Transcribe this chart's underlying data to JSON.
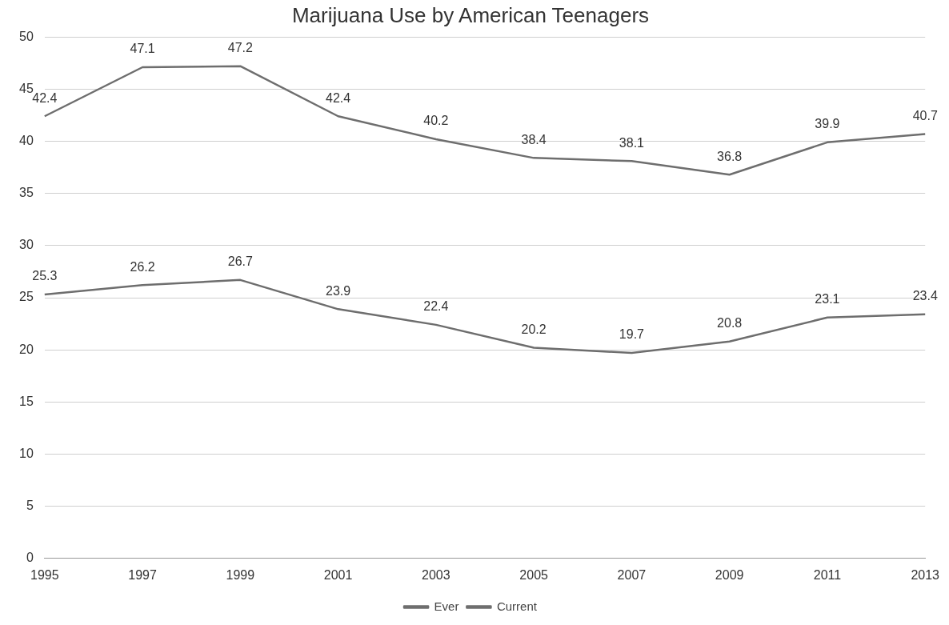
{
  "chart_data": {
    "type": "line",
    "title": "Marijuana Use by American Teenagers",
    "categories": [
      "1995",
      "1997",
      "1999",
      "2001",
      "2003",
      "2005",
      "2007",
      "2009",
      "2011",
      "2013"
    ],
    "series": [
      {
        "name": "Ever",
        "color": "#6e6e6e",
        "values": [
          42.4,
          47.1,
          47.2,
          42.4,
          40.2,
          38.4,
          38.1,
          36.8,
          39.9,
          40.7
        ]
      },
      {
        "name": "Current",
        "color": "#6e6e6e",
        "values": [
          25.3,
          26.2,
          26.7,
          23.9,
          22.4,
          20.2,
          19.7,
          20.8,
          23.1,
          23.4
        ]
      }
    ],
    "ylim": [
      0,
      50
    ],
    "yticks": [
      0,
      5,
      10,
      15,
      20,
      25,
      30,
      35,
      40,
      45,
      50
    ],
    "grid": "y",
    "legend": "bottom",
    "data_labels": true,
    "marker": "none",
    "line_style": "solid"
  }
}
